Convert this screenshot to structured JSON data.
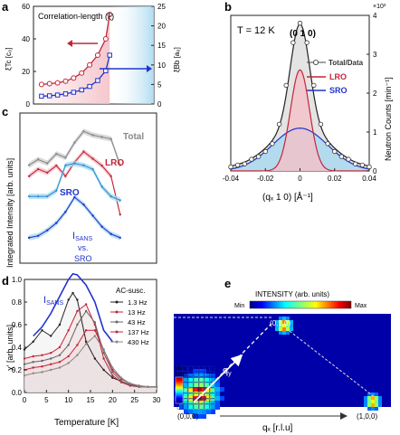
{
  "panel_labels": {
    "a": "a",
    "b": "b",
    "c": "c",
    "d": "d",
    "e": "e"
  },
  "colors": {
    "red": "#c0263a",
    "blue": "#2233cc",
    "gray": "#777777",
    "light_blue": "#a7d8ef",
    "light_red": "#f4c1c8"
  },
  "chart_data": [
    {
      "panel": "a",
      "type": "line",
      "legend_text": "Correlation-length (ξ)",
      "ylabel_left": "ξTc [c₀]",
      "ylabel_right": "ξBb [a₀]",
      "xlim": [
        0,
        30
      ],
      "ylim_left": [
        0,
        60
      ],
      "ylim_right": [
        0,
        25
      ],
      "yticks_left": [
        0,
        20,
        40,
        60
      ],
      "yticks_right": [
        0,
        5,
        10,
        15,
        20,
        25
      ],
      "series": [
        {
          "axis": "left",
          "x": [
            2,
            4,
            6,
            8,
            10,
            12,
            14,
            16,
            18,
            19
          ],
          "values": [
            12,
            12.5,
            13,
            14,
            16,
            19,
            24,
            30,
            40,
            55
          ]
        },
        {
          "axis": "right",
          "x": [
            2,
            4,
            6,
            8,
            10,
            12,
            14,
            16,
            18,
            19
          ],
          "values": [
            2,
            2.1,
            2.3,
            2.6,
            3.0,
            3.6,
            4.5,
            6.0,
            8.5,
            12.5
          ]
        }
      ]
    },
    {
      "panel": "b",
      "type": "line",
      "temperature_label": "T = 12 K",
      "peak_label": "(0 1 0)",
      "xlabel": "(qₓ 1 0)  [Å⁻¹]",
      "ylabel": "Neutron Counts [min⁻¹]",
      "scale_label": "×10³",
      "xlim": [
        -0.04,
        0.04
      ],
      "ylim": [
        0,
        4
      ],
      "xticks": [
        "-0.04",
        "-0.02",
        "0",
        "0.02",
        "0.04"
      ],
      "yticks": [
        "0",
        "1",
        "2",
        "3",
        "4"
      ],
      "legend": [
        "Total/Data",
        "LRO",
        "SRO"
      ],
      "lro_amplitude": 2.6,
      "lro_sigma": 0.0055,
      "sro_amplitude": 1.1,
      "sro_sigma": 0.016,
      "data_x": [
        -0.04,
        -0.036,
        -0.032,
        -0.028,
        -0.024,
        -0.02,
        -0.016,
        -0.012,
        -0.008,
        -0.004,
        0,
        0.004,
        0.008,
        0.012,
        0.016,
        0.02,
        0.024,
        0.028,
        0.032,
        0.036,
        0.04
      ],
      "data_y": [
        0.1,
        0.15,
        0.18,
        0.3,
        0.37,
        0.5,
        0.7,
        1.2,
        2.2,
        3.3,
        3.8,
        3.3,
        2.2,
        1.2,
        0.7,
        0.5,
        0.37,
        0.3,
        0.18,
        0.15,
        0.1
      ]
    },
    {
      "panel": "c",
      "type": "line",
      "ylabel": "Integrated Intensity [arb. units]",
      "xlim": [
        0,
        30
      ],
      "series": [
        {
          "name": "Total",
          "x": [
            2,
            4,
            6,
            8,
            10,
            12,
            14,
            16,
            18,
            20,
            22
          ],
          "values": [
            31,
            32.5,
            31.5,
            34,
            33,
            37,
            40,
            39,
            38.5,
            38,
            31
          ]
        },
        {
          "name": "LRO",
          "x": [
            2,
            4,
            6,
            8,
            10,
            12,
            14,
            16,
            18,
            20,
            22
          ],
          "values": [
            25,
            27,
            26,
            28,
            25,
            29,
            32,
            30,
            28,
            25,
            14
          ]
        },
        {
          "name": "SRO",
          "x": [
            2,
            4,
            6,
            8,
            10,
            12,
            14,
            16,
            18,
            20,
            22
          ],
          "values": [
            9,
            9,
            9,
            10.5,
            17,
            17.5,
            17,
            16,
            11.5,
            9,
            8
          ]
        },
        {
          "name": "I_SANS",
          "x": [
            2,
            4,
            6,
            8,
            10,
            12,
            14,
            16,
            18,
            20,
            22
          ],
          "values": [
            3,
            3.5,
            5,
            7,
            10,
            14,
            12,
            9,
            6,
            4,
            3
          ]
        }
      ],
      "isans_label": "I",
      "isans_sub": "SANS",
      "vs_label": "vs.",
      "sro_label2": "SRO"
    },
    {
      "panel": "d",
      "type": "line",
      "ylabel": "χ' [arb. units]",
      "xlabel": "Temperature [K]",
      "xlim": [
        0,
        30
      ],
      "ylim": [
        0,
        1.0
      ],
      "xticks": [
        "0",
        "5",
        "10",
        "15",
        "20",
        "25",
        "30"
      ],
      "yticks": [
        "0.0",
        "0.2",
        "0.4",
        "0.6",
        "0.8",
        "1.0"
      ],
      "legend_title": "AC-susc.",
      "isans_label": "I",
      "isans_sub": "SANS",
      "series": [
        {
          "name": "I_SANS",
          "x": [
            2,
            4,
            6,
            8,
            10,
            11,
            12,
            14,
            16,
            18,
            20
          ],
          "values": [
            0.5,
            0.58,
            0.7,
            0.85,
            1.0,
            1.05,
            1.04,
            0.95,
            0.8,
            0.55,
            0.45
          ]
        },
        {
          "name": "1.3 Hz",
          "x": [
            0,
            2,
            4,
            6,
            8,
            10,
            11,
            12,
            14,
            16,
            18,
            20,
            22,
            24,
            26,
            28,
            30
          ],
          "values": [
            0.38,
            0.45,
            0.55,
            0.5,
            0.6,
            0.82,
            0.88,
            0.82,
            0.45,
            0.3,
            0.2,
            0.13,
            0.1,
            0.07,
            0.06,
            0.05,
            0.05
          ]
        },
        {
          "name": "13 Hz",
          "x": [
            0,
            2,
            4,
            6,
            8,
            10,
            12,
            14,
            16,
            18,
            20,
            22,
            24,
            26,
            28,
            30
          ],
          "values": [
            0.3,
            0.32,
            0.33,
            0.35,
            0.4,
            0.55,
            0.72,
            0.78,
            0.6,
            0.3,
            0.15,
            0.09,
            0.06,
            0.05,
            0.05,
            0.05
          ]
        },
        {
          "name": "43 Hz",
          "x": [
            0,
            2,
            4,
            6,
            8,
            10,
            12,
            14,
            16,
            18,
            20,
            22,
            24,
            26,
            28,
            30
          ],
          "values": [
            0.25,
            0.27,
            0.28,
            0.3,
            0.33,
            0.42,
            0.6,
            0.72,
            0.62,
            0.35,
            0.18,
            0.1,
            0.07,
            0.05,
            0.05,
            0.05
          ]
        },
        {
          "name": "137 Hz",
          "x": [
            0,
            2,
            4,
            6,
            8,
            10,
            12,
            14,
            16,
            18,
            20,
            22,
            24,
            26,
            28,
            30
          ],
          "values": [
            0.2,
            0.22,
            0.23,
            0.25,
            0.27,
            0.32,
            0.42,
            0.55,
            0.55,
            0.38,
            0.2,
            0.12,
            0.08,
            0.06,
            0.05,
            0.05
          ]
        },
        {
          "name": "430 Hz",
          "x": [
            0,
            2,
            4,
            6,
            8,
            10,
            12,
            14,
            16,
            18,
            20,
            22,
            24,
            26,
            28,
            30
          ],
          "values": [
            0.15,
            0.17,
            0.18,
            0.2,
            0.22,
            0.26,
            0.33,
            0.43,
            0.5,
            0.38,
            0.22,
            0.13,
            0.08,
            0.06,
            0.05,
            0.05
          ]
        }
      ]
    },
    {
      "panel": "e",
      "type": "heatmap",
      "colorbar_title": "INTENSITY (arb. units)",
      "colorbar_min": "Min",
      "colorbar_max": "Max",
      "inset_max_label": "Max",
      "inset_value_label": "1000",
      "point_labels": [
        "(0,1,0)",
        "(0,0,0)",
        "(1,0,0)"
      ],
      "qx_label": "qₓ [r.l.u]",
      "qy_label": "q",
      "qy_sub": "y"
    }
  ]
}
